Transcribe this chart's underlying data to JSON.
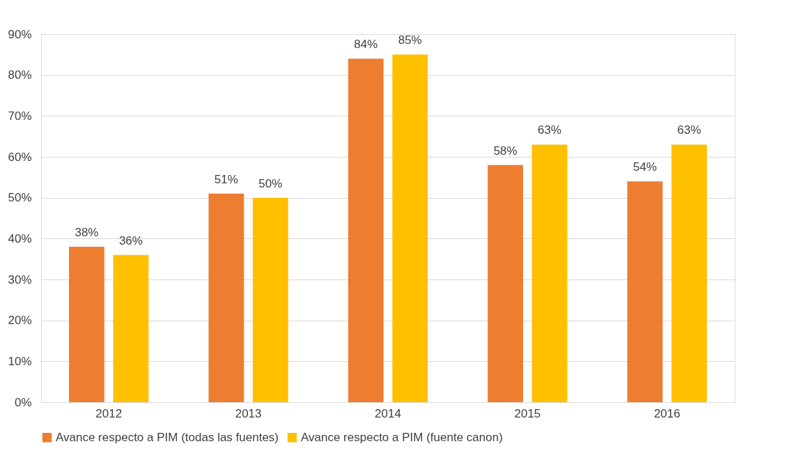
{
  "chart_data": {
    "type": "bar",
    "categories": [
      "2012",
      "2013",
      "2014",
      "2015",
      "2016"
    ],
    "series": [
      {
        "name": "Avance respecto a PIM (todas las fuentes)",
        "color": "#ed7d31",
        "values": [
          38,
          51,
          84,
          58,
          54
        ],
        "value_labels": [
          "38%",
          "51%",
          "84%",
          "58%",
          "54%"
        ]
      },
      {
        "name": "Avance respecto a PIM (fuente canon)",
        "color": "#ffc000",
        "values": [
          36,
          50,
          85,
          63,
          63
        ],
        "value_labels": [
          "36%",
          "50%",
          "85%",
          "63%",
          "63%"
        ]
      }
    ],
    "ylim": [
      0,
      90
    ],
    "yticks": [
      {
        "value": 0,
        "label": "0%"
      },
      {
        "value": 10,
        "label": "10%"
      },
      {
        "value": 20,
        "label": "20%"
      },
      {
        "value": 30,
        "label": "30%"
      },
      {
        "value": 40,
        "label": "40%"
      },
      {
        "value": 50,
        "label": "50%"
      },
      {
        "value": 60,
        "label": "60%"
      },
      {
        "value": 70,
        "label": "70%"
      },
      {
        "value": 80,
        "label": "80%"
      },
      {
        "value": 90,
        "label": "90%"
      }
    ],
    "grid": "y",
    "legend": "bottom"
  }
}
